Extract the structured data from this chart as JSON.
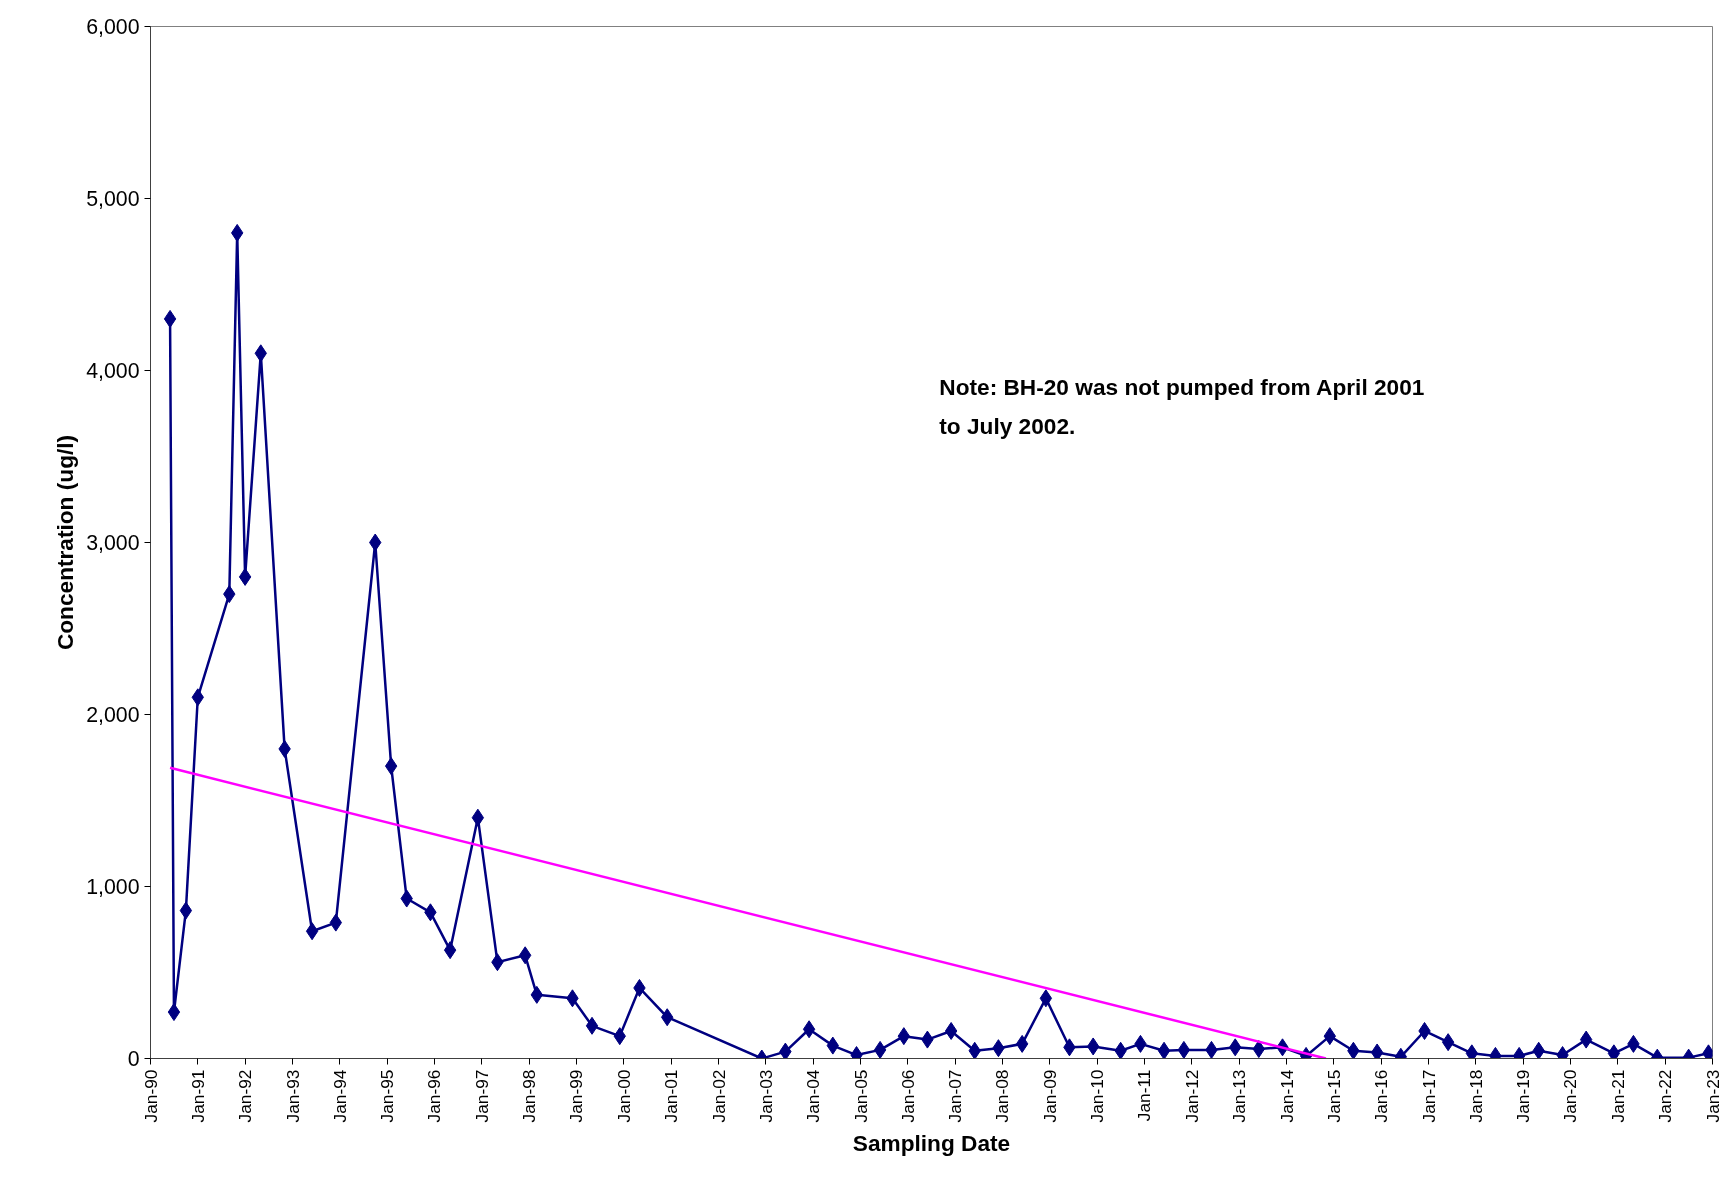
{
  "chart_data": {
    "type": "line",
    "xlabel": "Sampling Date",
    "ylabel": "Concentration (ug/l)",
    "annotations": [
      "Note: BH-20 was not pumped from April 2001\nto July 2002."
    ],
    "xlim": [
      "1990-01",
      "2023-01"
    ],
    "xticks": [
      {
        "value": "1990-01",
        "label": "Jan-90"
      },
      {
        "value": "1991-01",
        "label": "Jan-91"
      },
      {
        "value": "1992-01",
        "label": "Jan-92"
      },
      {
        "value": "1993-01",
        "label": "Jan-93"
      },
      {
        "value": "1994-01",
        "label": "Jan-94"
      },
      {
        "value": "1995-01",
        "label": "Jan-95"
      },
      {
        "value": "1996-01",
        "label": "Jan-96"
      },
      {
        "value": "1997-01",
        "label": "Jan-97"
      },
      {
        "value": "1998-01",
        "label": "Jan-98"
      },
      {
        "value": "1999-01",
        "label": "Jan-99"
      },
      {
        "value": "2000-01",
        "label": "Jan-00"
      },
      {
        "value": "2001-01",
        "label": "Jan-01"
      },
      {
        "value": "2002-01",
        "label": "Jan-02"
      },
      {
        "value": "2003-01",
        "label": "Jan-03"
      },
      {
        "value": "2004-01",
        "label": "Jan-04"
      },
      {
        "value": "2005-01",
        "label": "Jan-05"
      },
      {
        "value": "2006-01",
        "label": "Jan-06"
      },
      {
        "value": "2007-01",
        "label": "Jan-07"
      },
      {
        "value": "2008-01",
        "label": "Jan-08"
      },
      {
        "value": "2009-01",
        "label": "Jan-09"
      },
      {
        "value": "2010-01",
        "label": "Jan-10"
      },
      {
        "value": "2011-01",
        "label": "Jan-11"
      },
      {
        "value": "2012-01",
        "label": "Jan-12"
      },
      {
        "value": "2013-01",
        "label": "Jan-13"
      },
      {
        "value": "2014-01",
        "label": "Jan-14"
      },
      {
        "value": "2015-01",
        "label": "Jan-15"
      },
      {
        "value": "2016-01",
        "label": "Jan-16"
      },
      {
        "value": "2017-01",
        "label": "Jan-17"
      },
      {
        "value": "2018-01",
        "label": "Jan-18"
      },
      {
        "value": "2019-01",
        "label": "Jan-19"
      },
      {
        "value": "2020-01",
        "label": "Jan-20"
      },
      {
        "value": "2021-01",
        "label": "Jan-21"
      },
      {
        "value": "2022-01",
        "label": "Jan-22"
      },
      {
        "value": "2023-01",
        "label": "Jan-23"
      }
    ],
    "ylim": [
      0,
      6000
    ],
    "yticks": [
      0,
      {
        "value": 1000,
        "label": "1,000"
      },
      {
        "value": 2000,
        "label": "2,000"
      },
      {
        "value": 3000,
        "label": "3,000"
      },
      {
        "value": 4000,
        "label": "4,000"
      },
      {
        "value": 5000,
        "label": "5,000"
      },
      {
        "value": 6000,
        "label": "6,000"
      }
    ],
    "grid": false,
    "line_style": "solid",
    "series": [
      {
        "color": "#000080",
        "marker": "diamond",
        "x": [
          "1990-06",
          "1990-07",
          "1990-10",
          "1991-01",
          "1991-09",
          "1991-11",
          "1992-01",
          "1992-05",
          "1992-11",
          "1993-06",
          "1993-12",
          "1994-10",
          "1995-02",
          "1995-06",
          "1995-12",
          "1996-05",
          "1996-12",
          "1997-05",
          "1997-12",
          "1998-03",
          "1998-12",
          "1999-05",
          "1999-12",
          "2000-05",
          "2000-12",
          "2002-12",
          "2003-06",
          "2003-12",
          "2004-06",
          "2004-12",
          "2005-06",
          "2005-12",
          "2006-06",
          "2006-12",
          "2007-06",
          "2007-12",
          "2008-06",
          "2008-12",
          "2009-06",
          "2009-12",
          "2010-07",
          "2010-12",
          "2011-06",
          "2011-11",
          "2012-06",
          "2012-12",
          "2013-06",
          "2013-12",
          "2014-06",
          "2014-12",
          "2015-06",
          "2015-12",
          "2016-06",
          "2016-12",
          "2017-06",
          "2017-12",
          "2018-06",
          "2018-12",
          "2019-05",
          "2019-11",
          "2020-05",
          "2020-12",
          "2021-05",
          "2021-11",
          "2022-07",
          "2022-12"
        ],
        "values": [
          4300,
          270,
          860,
          2100,
          2700,
          4800,
          2800,
          4100,
          1800,
          740,
          790,
          3000,
          1700,
          930,
          850,
          630,
          1400,
          560,
          600,
          370,
          350,
          190,
          130,
          410,
          240,
          0,
          40,
          170,
          75,
          20,
          50,
          130,
          110,
          160,
          45,
          60,
          85,
          350,
          65,
          70,
          45,
          85,
          45,
          50,
          50,
          65,
          55,
          65,
          15,
          130,
          45,
          35,
          10,
          160,
          95,
          30,
          15,
          15,
          45,
          20,
          110,
          30,
          85,
          5,
          5,
          30
        ]
      },
      {
        "color": "#ff00ff",
        "marker": "none",
        "x": [
          "1990-06",
          "2014-11"
        ],
        "values": [
          1690,
          0
        ]
      }
    ]
  }
}
